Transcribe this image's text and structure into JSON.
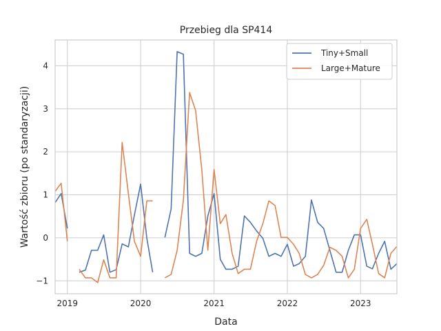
{
  "chart_data": {
    "type": "line",
    "title": "Przebieg dla SP414",
    "xlabel": "Data",
    "ylabel": "Wartość zbioru (po standaryzacji)",
    "xlim": [
      "2018-11-01",
      "2023-07-01"
    ],
    "ylim": [
      -1.3,
      4.6
    ],
    "x_ticks": [
      "2019-01-01",
      "2020-01-01",
      "2021-01-01",
      "2022-01-01",
      "2023-01-01"
    ],
    "x_tick_labels": [
      "2019",
      "2020",
      "2021",
      "2022",
      "2023"
    ],
    "y_ticks": [
      -1,
      0,
      1,
      2,
      3,
      4
    ],
    "grid": true,
    "legend": "top-right",
    "x": [
      "2018-11-01",
      "2018-12-01",
      "2019-01-01",
      "2019-02-01",
      "2019-03-01",
      "2019-04-01",
      "2019-05-01",
      "2019-06-01",
      "2019-07-01",
      "2019-08-01",
      "2019-09-01",
      "2019-10-01",
      "2019-11-01",
      "2019-12-01",
      "2020-01-01",
      "2020-02-01",
      "2020-03-01",
      "2020-04-01",
      "2020-05-01",
      "2020-06-01",
      "2020-07-01",
      "2020-08-01",
      "2020-09-01",
      "2020-10-01",
      "2020-11-01",
      "2020-12-01",
      "2021-01-01",
      "2021-02-01",
      "2021-03-01",
      "2021-04-01",
      "2021-05-01",
      "2021-06-01",
      "2021-07-01",
      "2021-08-01",
      "2021-09-01",
      "2021-10-01",
      "2021-11-01",
      "2021-12-01",
      "2022-01-01",
      "2022-02-01",
      "2022-03-01",
      "2022-04-01",
      "2022-05-01",
      "2022-06-01",
      "2022-07-01",
      "2022-08-01",
      "2022-09-01",
      "2022-10-01",
      "2022-11-01",
      "2022-12-01",
      "2023-01-01",
      "2023-02-01",
      "2023-03-01",
      "2023-04-01",
      "2023-05-01",
      "2023-06-01",
      "2023-07-01"
    ],
    "series": [
      {
        "name": "Tiny+Small",
        "color": "#4c72b0",
        "values": [
          0.82,
          1.03,
          0.22,
          null,
          -0.8,
          -0.75,
          -0.29,
          -0.29,
          0.07,
          -0.8,
          -0.74,
          -0.14,
          -0.21,
          0.53,
          1.25,
          -0.01,
          -0.8,
          null,
          0.01,
          0.67,
          4.33,
          4.27,
          -0.36,
          -0.43,
          -0.36,
          0.51,
          1.03,
          -0.5,
          -0.73,
          -0.73,
          -0.66,
          0.51,
          0.36,
          0.16,
          -0.01,
          -0.43,
          -0.36,
          -0.43,
          -0.15,
          -0.66,
          -0.6,
          -0.43,
          0.88,
          0.36,
          0.22,
          -0.29,
          -0.8,
          -0.8,
          -0.29,
          0.07,
          0.07,
          -0.66,
          -0.72,
          -0.36,
          -0.08,
          -0.73,
          -0.6
        ]
      },
      {
        "name": "Large+Mature",
        "color": "#dd8452",
        "values": [
          1.08,
          1.27,
          -0.08,
          null,
          -0.73,
          -0.93,
          -0.93,
          -1.04,
          -0.51,
          -0.93,
          -0.93,
          2.22,
          1.03,
          -0.08,
          -0.43,
          0.86,
          0.86,
          null,
          -0.93,
          -0.85,
          -0.29,
          0.87,
          3.38,
          2.96,
          1.58,
          -0.29,
          1.59,
          0.33,
          0.54,
          -0.36,
          -0.83,
          -0.73,
          -0.73,
          -0.08,
          0.33,
          0.86,
          0.75,
          0.01,
          0.01,
          -0.15,
          -0.36,
          -0.85,
          -0.93,
          -0.85,
          -0.64,
          -0.22,
          -0.29,
          -0.43,
          -0.93,
          -0.73,
          0.22,
          0.43,
          -0.15,
          -0.83,
          -0.93,
          -0.36,
          -0.2
        ]
      }
    ]
  }
}
